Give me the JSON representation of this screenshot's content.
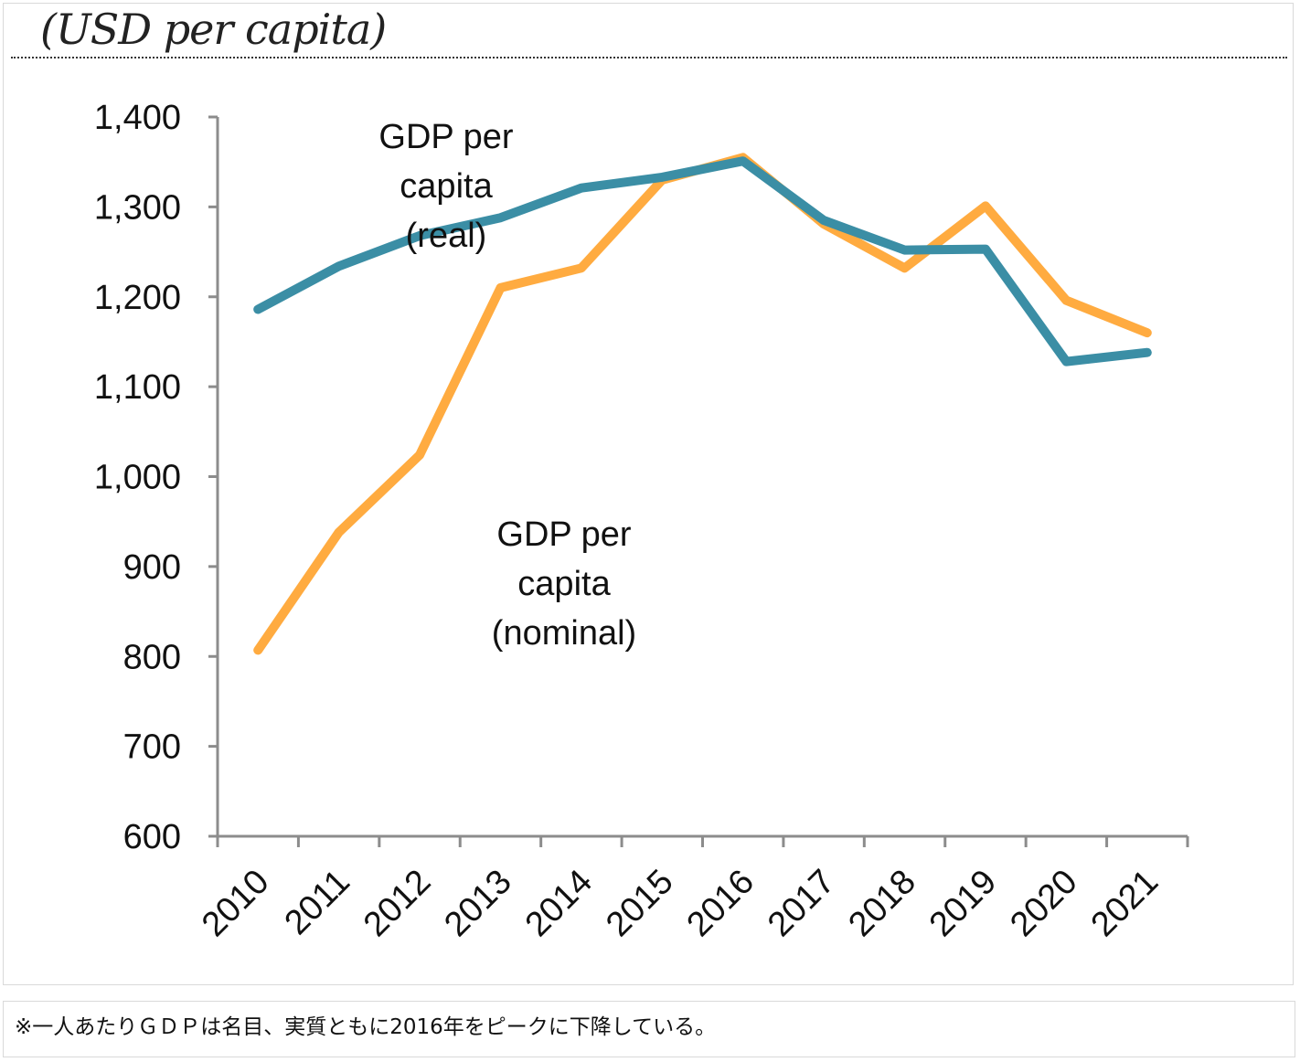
{
  "unit_label": "(USD per capita)",
  "note_text": "※一人あたりＧＤＰは名目、実質ともに2016年をピークに下降している。",
  "chart_data": {
    "type": "line",
    "categories": [
      "2010",
      "2011",
      "2012",
      "2013",
      "2014",
      "2015",
      "2016",
      "2017",
      "2018",
      "2019",
      "2020",
      "2021"
    ],
    "ylim": [
      600,
      1400
    ],
    "yticks": [
      600,
      700,
      800,
      900,
      1000,
      1100,
      1200,
      1300,
      1400
    ],
    "ytick_labels": [
      "600",
      "700",
      "800",
      "900",
      "1,000",
      "1,100",
      "1,200",
      "1,300",
      "1,400"
    ],
    "ylabel": "(USD per capita)",
    "xlabel": "",
    "grid": false,
    "series": [
      {
        "key": "real",
        "color": "#3b8ea5",
        "values": [
          1186,
          1234,
          1268,
          1288,
          1321,
          1333,
          1351,
          1285,
          1252,
          1253,
          1128,
          1138
        ]
      },
      {
        "key": "nominal",
        "color": "#ffab40",
        "values": [
          807,
          938,
          1024,
          1210,
          1232,
          1330,
          1355,
          1281,
          1232,
          1301,
          1196,
          1160
        ]
      }
    ],
    "annotations": [
      {
        "series": "real",
        "lines": [
          "GDP per",
          "capita",
          "(real)"
        ]
      },
      {
        "series": "nominal",
        "lines": [
          "GDP per",
          "capita",
          "(nominal)"
        ]
      }
    ]
  }
}
